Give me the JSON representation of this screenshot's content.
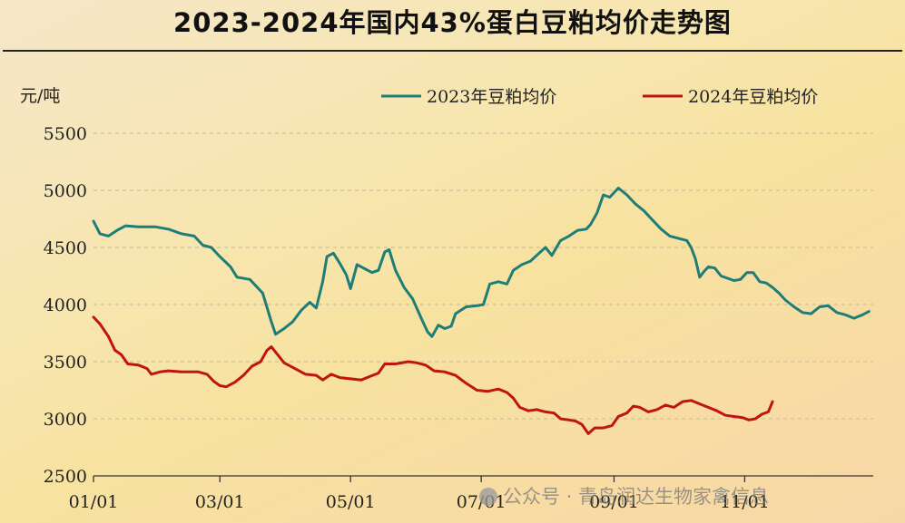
{
  "chart_data": {
    "type": "line",
    "title": "2023-2024年国内43%蛋白豆粕均价走势图",
    "ylabel": "元/吨",
    "ylim": [
      2500,
      5500
    ],
    "yticks": [
      2500,
      3000,
      3500,
      4000,
      4500,
      5000,
      5500
    ],
    "x_ticks": [
      "01/01",
      "03/01",
      "05/01",
      "07/01",
      "09/01",
      "11/01"
    ],
    "x_tick_days": [
      1,
      60,
      121,
      182,
      244,
      305
    ],
    "xlim_days": [
      1,
      365
    ],
    "grid": "horizontal dashed",
    "legend_position": "top-right",
    "series": [
      {
        "name": "2023年豆粕均价",
        "color": "#1f7d78",
        "points": [
          {
            "day": 1,
            "value": 4730
          },
          {
            "day": 4,
            "value": 4620
          },
          {
            "day": 8,
            "value": 4600
          },
          {
            "day": 12,
            "value": 4650
          },
          {
            "day": 16,
            "value": 4690
          },
          {
            "day": 22,
            "value": 4680
          },
          {
            "day": 30,
            "value": 4680
          },
          {
            "day": 36,
            "value": 4660
          },
          {
            "day": 42,
            "value": 4620
          },
          {
            "day": 48,
            "value": 4600
          },
          {
            "day": 52,
            "value": 4520
          },
          {
            "day": 56,
            "value": 4500
          },
          {
            "day": 60,
            "value": 4420
          },
          {
            "day": 65,
            "value": 4330
          },
          {
            "day": 68,
            "value": 4240
          },
          {
            "day": 74,
            "value": 4220
          },
          {
            "day": 80,
            "value": 4100
          },
          {
            "day": 84,
            "value": 3850
          },
          {
            "day": 86,
            "value": 3740
          },
          {
            "day": 90,
            "value": 3790
          },
          {
            "day": 94,
            "value": 3850
          },
          {
            "day": 98,
            "value": 3950
          },
          {
            "day": 102,
            "value": 4020
          },
          {
            "day": 105,
            "value": 3970
          },
          {
            "day": 108,
            "value": 4200
          },
          {
            "day": 110,
            "value": 4420
          },
          {
            "day": 113,
            "value": 4450
          },
          {
            "day": 116,
            "value": 4360
          },
          {
            "day": 119,
            "value": 4260
          },
          {
            "day": 121,
            "value": 4140
          },
          {
            "day": 124,
            "value": 4350
          },
          {
            "day": 127,
            "value": 4320
          },
          {
            "day": 131,
            "value": 4280
          },
          {
            "day": 134,
            "value": 4300
          },
          {
            "day": 137,
            "value": 4460
          },
          {
            "day": 139,
            "value": 4480
          },
          {
            "day": 142,
            "value": 4300
          },
          {
            "day": 146,
            "value": 4150
          },
          {
            "day": 150,
            "value": 4050
          },
          {
            "day": 154,
            "value": 3880
          },
          {
            "day": 157,
            "value": 3760
          },
          {
            "day": 159,
            "value": 3720
          },
          {
            "day": 162,
            "value": 3820
          },
          {
            "day": 165,
            "value": 3790
          },
          {
            "day": 168,
            "value": 3810
          },
          {
            "day": 170,
            "value": 3920
          },
          {
            "day": 175,
            "value": 3980
          },
          {
            "day": 180,
            "value": 3990
          },
          {
            "day": 183,
            "value": 4000
          },
          {
            "day": 186,
            "value": 4180
          },
          {
            "day": 190,
            "value": 4200
          },
          {
            "day": 194,
            "value": 4180
          },
          {
            "day": 197,
            "value": 4300
          },
          {
            "day": 201,
            "value": 4350
          },
          {
            "day": 205,
            "value": 4380
          },
          {
            "day": 209,
            "value": 4450
          },
          {
            "day": 212,
            "value": 4500
          },
          {
            "day": 215,
            "value": 4430
          },
          {
            "day": 219,
            "value": 4560
          },
          {
            "day": 223,
            "value": 4600
          },
          {
            "day": 227,
            "value": 4650
          },
          {
            "day": 231,
            "value": 4660
          },
          {
            "day": 233,
            "value": 4700
          },
          {
            "day": 236,
            "value": 4800
          },
          {
            "day": 239,
            "value": 4960
          },
          {
            "day": 242,
            "value": 4940
          },
          {
            "day": 244,
            "value": 4980
          },
          {
            "day": 246,
            "value": 5020
          },
          {
            "day": 250,
            "value": 4960
          },
          {
            "day": 254,
            "value": 4880
          },
          {
            "day": 258,
            "value": 4820
          },
          {
            "day": 262,
            "value": 4740
          },
          {
            "day": 266,
            "value": 4660
          },
          {
            "day": 270,
            "value": 4600
          },
          {
            "day": 274,
            "value": 4580
          },
          {
            "day": 278,
            "value": 4560
          },
          {
            "day": 280,
            "value": 4500
          },
          {
            "day": 282,
            "value": 4400
          },
          {
            "day": 284,
            "value": 4240
          },
          {
            "day": 286,
            "value": 4290
          },
          {
            "day": 288,
            "value": 4330
          },
          {
            "day": 291,
            "value": 4320
          },
          {
            "day": 294,
            "value": 4250
          },
          {
            "day": 297,
            "value": 4230
          },
          {
            "day": 300,
            "value": 4210
          },
          {
            "day": 303,
            "value": 4220
          },
          {
            "day": 306,
            "value": 4280
          },
          {
            "day": 309,
            "value": 4280
          },
          {
            "day": 312,
            "value": 4200
          },
          {
            "day": 315,
            "value": 4190
          },
          {
            "day": 318,
            "value": 4150
          },
          {
            "day": 321,
            "value": 4100
          },
          {
            "day": 324,
            "value": 4040
          },
          {
            "day": 328,
            "value": 3980
          },
          {
            "day": 332,
            "value": 3930
          },
          {
            "day": 336,
            "value": 3920
          },
          {
            "day": 340,
            "value": 3980
          },
          {
            "day": 344,
            "value": 3990
          },
          {
            "day": 348,
            "value": 3930
          },
          {
            "day": 352,
            "value": 3910
          },
          {
            "day": 356,
            "value": 3880
          },
          {
            "day": 360,
            "value": 3910
          },
          {
            "day": 363,
            "value": 3940
          }
        ]
      },
      {
        "name": "2024年豆粕均价",
        "color": "#c0140f",
        "points": [
          {
            "day": 1,
            "value": 3890
          },
          {
            "day": 4,
            "value": 3830
          },
          {
            "day": 8,
            "value": 3720
          },
          {
            "day": 11,
            "value": 3600
          },
          {
            "day": 14,
            "value": 3560
          },
          {
            "day": 17,
            "value": 3480
          },
          {
            "day": 22,
            "value": 3470
          },
          {
            "day": 26,
            "value": 3440
          },
          {
            "day": 28,
            "value": 3390
          },
          {
            "day": 32,
            "value": 3410
          },
          {
            "day": 36,
            "value": 3420
          },
          {
            "day": 42,
            "value": 3410
          },
          {
            "day": 50,
            "value": 3410
          },
          {
            "day": 54,
            "value": 3390
          },
          {
            "day": 57,
            "value": 3330
          },
          {
            "day": 60,
            "value": 3290
          },
          {
            "day": 63,
            "value": 3280
          },
          {
            "day": 67,
            "value": 3320
          },
          {
            "day": 71,
            "value": 3380
          },
          {
            "day": 75,
            "value": 3460
          },
          {
            "day": 79,
            "value": 3500
          },
          {
            "day": 82,
            "value": 3600
          },
          {
            "day": 84,
            "value": 3630
          },
          {
            "day": 87,
            "value": 3560
          },
          {
            "day": 90,
            "value": 3490
          },
          {
            "day": 95,
            "value": 3440
          },
          {
            "day": 100,
            "value": 3390
          },
          {
            "day": 105,
            "value": 3380
          },
          {
            "day": 108,
            "value": 3340
          },
          {
            "day": 112,
            "value": 3390
          },
          {
            "day": 116,
            "value": 3360
          },
          {
            "day": 121,
            "value": 3350
          },
          {
            "day": 126,
            "value": 3340
          },
          {
            "day": 130,
            "value": 3370
          },
          {
            "day": 134,
            "value": 3400
          },
          {
            "day": 137,
            "value": 3480
          },
          {
            "day": 142,
            "value": 3480
          },
          {
            "day": 148,
            "value": 3500
          },
          {
            "day": 152,
            "value": 3490
          },
          {
            "day": 156,
            "value": 3470
          },
          {
            "day": 160,
            "value": 3420
          },
          {
            "day": 165,
            "value": 3410
          },
          {
            "day": 170,
            "value": 3380
          },
          {
            "day": 175,
            "value": 3310
          },
          {
            "day": 180,
            "value": 3250
          },
          {
            "day": 185,
            "value": 3240
          },
          {
            "day": 190,
            "value": 3260
          },
          {
            "day": 194,
            "value": 3230
          },
          {
            "day": 197,
            "value": 3180
          },
          {
            "day": 200,
            "value": 3100
          },
          {
            "day": 204,
            "value": 3070
          },
          {
            "day": 208,
            "value": 3080
          },
          {
            "day": 212,
            "value": 3060
          },
          {
            "day": 216,
            "value": 3050
          },
          {
            "day": 219,
            "value": 3000
          },
          {
            "day": 223,
            "value": 2990
          },
          {
            "day": 226,
            "value": 2980
          },
          {
            "day": 229,
            "value": 2950
          },
          {
            "day": 232,
            "value": 2870
          },
          {
            "day": 235,
            "value": 2920
          },
          {
            "day": 239,
            "value": 2920
          },
          {
            "day": 243,
            "value": 2940
          },
          {
            "day": 246,
            "value": 3020
          },
          {
            "day": 250,
            "value": 3050
          },
          {
            "day": 253,
            "value": 3110
          },
          {
            "day": 256,
            "value": 3100
          },
          {
            "day": 260,
            "value": 3060
          },
          {
            "day": 264,
            "value": 3080
          },
          {
            "day": 268,
            "value": 3120
          },
          {
            "day": 272,
            "value": 3100
          },
          {
            "day": 276,
            "value": 3150
          },
          {
            "day": 280,
            "value": 3160
          },
          {
            "day": 284,
            "value": 3130
          },
          {
            "day": 288,
            "value": 3100
          },
          {
            "day": 292,
            "value": 3070
          },
          {
            "day": 296,
            "value": 3030
          },
          {
            "day": 300,
            "value": 3020
          },
          {
            "day": 304,
            "value": 3010
          },
          {
            "day": 307,
            "value": 2990
          },
          {
            "day": 310,
            "value": 3000
          },
          {
            "day": 313,
            "value": 3040
          },
          {
            "day": 316,
            "value": 3060
          },
          {
            "day": 318,
            "value": 3150
          }
        ]
      }
    ]
  },
  "watermark": {
    "text": "公众号 · 青岛润达生物家禽信息"
  }
}
